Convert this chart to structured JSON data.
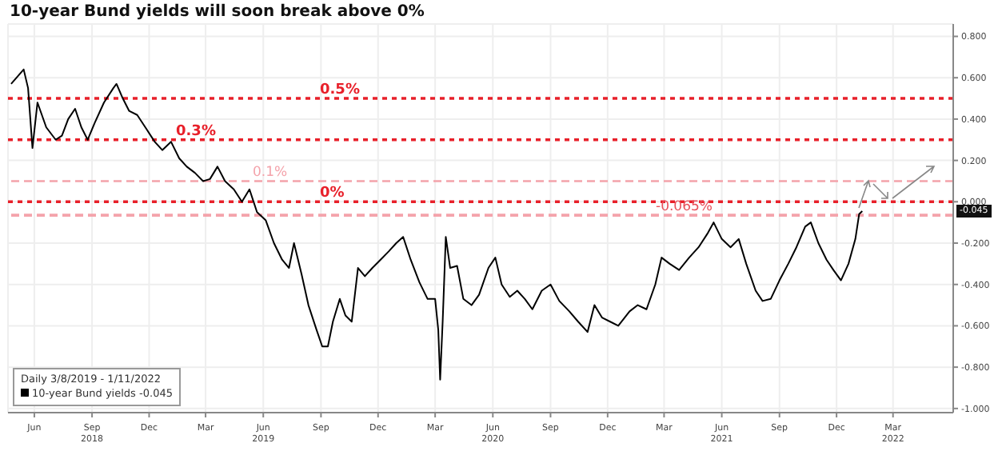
{
  "chart_data": {
    "type": "line",
    "title": "10-year Bund yields will soon break above 0%",
    "annotations": [
      "Daily 3/8/2019 - 1/11/2022",
      "-0.045"
    ],
    "x": [
      "2018-04-25",
      "2018-05-15",
      "2018-05-22",
      "2018-05-29",
      "2018-06-06",
      "2018-06-20",
      "2018-07-05",
      "2018-07-15",
      "2018-07-25",
      "2018-08-05",
      "2018-08-15",
      "2018-08-25",
      "2018-09-05",
      "2018-09-20",
      "2018-10-05",
      "2018-10-10",
      "2018-10-20",
      "2018-10-30",
      "2018-11-12",
      "2018-11-25",
      "2018-12-10",
      "2018-12-22",
      "2019-01-05",
      "2019-01-18",
      "2019-01-30",
      "2019-02-12",
      "2019-02-25",
      "2019-03-08",
      "2019-03-20",
      "2019-04-01",
      "2019-04-15",
      "2019-04-28",
      "2019-05-10",
      "2019-05-22",
      "2019-06-05",
      "2019-06-18",
      "2019-07-01",
      "2019-07-12",
      "2019-07-20",
      "2019-08-01",
      "2019-08-12",
      "2019-08-25",
      "2019-09-03",
      "2019-09-12",
      "2019-09-20",
      "2019-10-01",
      "2019-10-10",
      "2019-10-20",
      "2019-10-30",
      "2019-11-10",
      "2019-11-22",
      "2019-12-05",
      "2019-12-18",
      "2019-12-30",
      "2020-01-10",
      "2020-01-22",
      "2020-02-05",
      "2020-02-18",
      "2020-03-01",
      "2020-03-06",
      "2020-03-09",
      "2020-03-13",
      "2020-03-18",
      "2020-03-25",
      "2020-04-05",
      "2020-04-15",
      "2020-04-28",
      "2020-05-10",
      "2020-05-25",
      "2020-06-05",
      "2020-06-15",
      "2020-06-28",
      "2020-07-10",
      "2020-07-22",
      "2020-08-03",
      "2020-08-18",
      "2020-09-01",
      "2020-09-15",
      "2020-10-01",
      "2020-10-15",
      "2020-10-30",
      "2020-11-10",
      "2020-11-22",
      "2020-12-05",
      "2020-12-18",
      "2021-01-05",
      "2021-01-18",
      "2021-02-01",
      "2021-02-15",
      "2021-02-25",
      "2021-03-10",
      "2021-03-25",
      "2021-04-10",
      "2021-04-25",
      "2021-05-10",
      "2021-05-19",
      "2021-06-01",
      "2021-06-15",
      "2021-06-28",
      "2021-07-10",
      "2021-07-25",
      "2021-08-05",
      "2021-08-18",
      "2021-09-01",
      "2021-09-15",
      "2021-09-28",
      "2021-10-12",
      "2021-10-21",
      "2021-11-02",
      "2021-11-15",
      "2021-11-26",
      "2021-12-08",
      "2021-12-20",
      "2021-12-31",
      "2022-01-06",
      "2022-01-11"
    ],
    "series": [
      {
        "name": "10-year Bund yields",
        "color": "#000000",
        "values": [
          0.57,
          0.64,
          0.55,
          0.26,
          0.48,
          0.36,
          0.3,
          0.32,
          0.4,
          0.45,
          0.36,
          0.3,
          0.38,
          0.48,
          0.55,
          0.57,
          0.5,
          0.44,
          0.42,
          0.36,
          0.29,
          0.25,
          0.29,
          0.21,
          0.17,
          0.14,
          0.1,
          0.11,
          0.17,
          0.1,
          0.06,
          0.0,
          0.06,
          -0.05,
          -0.09,
          -0.2,
          -0.28,
          -0.32,
          -0.2,
          -0.35,
          -0.5,
          -0.62,
          -0.7,
          -0.7,
          -0.58,
          -0.47,
          -0.55,
          -0.58,
          -0.32,
          -0.36,
          -0.32,
          -0.28,
          -0.24,
          -0.2,
          -0.17,
          -0.28,
          -0.39,
          -0.47,
          -0.47,
          -0.62,
          -0.86,
          -0.58,
          -0.17,
          -0.32,
          -0.31,
          -0.47,
          -0.5,
          -0.45,
          -0.32,
          -0.27,
          -0.4,
          -0.46,
          -0.43,
          -0.47,
          -0.52,
          -0.43,
          -0.4,
          -0.48,
          -0.53,
          -0.58,
          -0.63,
          -0.5,
          -0.56,
          -0.58,
          -0.6,
          -0.53,
          -0.5,
          -0.52,
          -0.4,
          -0.27,
          -0.3,
          -0.33,
          -0.27,
          -0.22,
          -0.15,
          -0.1,
          -0.18,
          -0.22,
          -0.18,
          -0.3,
          -0.43,
          -0.48,
          -0.47,
          -0.38,
          -0.3,
          -0.22,
          -0.12,
          -0.1,
          -0.2,
          -0.28,
          -0.33,
          -0.38,
          -0.3,
          -0.18,
          -0.06,
          -0.045
        ]
      }
    ],
    "xlim": [
      "2018-04-20",
      "2022-06-05"
    ],
    "xticks": [
      {
        "value": "2018-06-01",
        "label": "Jun"
      },
      {
        "value": "2018-09-01",
        "label": "Sep 2018"
      },
      {
        "value": "2018-12-01",
        "label": "Dec"
      },
      {
        "value": "2019-03-01",
        "label": "Mar"
      },
      {
        "value": "2019-06-01",
        "label": "Jun 2019"
      },
      {
        "value": "2019-09-01",
        "label": "Sep"
      },
      {
        "value": "2019-12-01",
        "label": "Dec"
      },
      {
        "value": "2020-03-01",
        "label": "Mar"
      },
      {
        "value": "2020-06-01",
        "label": "Jun 2020"
      },
      {
        "value": "2020-09-01",
        "label": "Sep"
      },
      {
        "value": "2020-12-01",
        "label": "Dec"
      },
      {
        "value": "2021-03-01",
        "label": "Mar"
      },
      {
        "value": "2021-06-01",
        "label": "Jun 2021"
      },
      {
        "value": "2021-09-01",
        "label": "Sep"
      },
      {
        "value": "2021-12-01",
        "label": "Dec"
      },
      {
        "value": "2022-03-01",
        "label": "Mar 2022"
      }
    ],
    "ylim": [
      -1.02,
      0.86
    ],
    "yticks": [
      {
        "value": 0.8,
        "label": "0.800"
      },
      {
        "value": 0.6,
        "label": "0.600"
      },
      {
        "value": 0.4,
        "label": "0.400"
      },
      {
        "value": 0.2,
        "label": "0.200"
      },
      {
        "value": 0,
        "label": "0.000"
      },
      {
        "value": -0.2,
        "label": "-0.200"
      },
      {
        "value": -0.4,
        "label": "-0.400"
      },
      {
        "value": -0.6,
        "label": "-0.600"
      },
      {
        "value": -0.8,
        "label": "-0.800"
      },
      {
        "value": -1,
        "label": "-1.000"
      }
    ],
    "ref_lines": [
      {
        "axis": "y",
        "value": 0.5,
        "label": "0.5%",
        "color": "#e8202a",
        "line_style": "dotted"
      },
      {
        "axis": "y",
        "value": 0.3,
        "label": "0.3%",
        "color": "#e8202a",
        "line_style": "dotted"
      },
      {
        "axis": "y",
        "value": 0.1,
        "label": "0.1%",
        "color": "#f4a3ab",
        "line_style": "dashed"
      },
      {
        "axis": "y",
        "value": 0,
        "label": "0%",
        "color": "#e8202a",
        "line_style": "dotted"
      },
      {
        "axis": "y",
        "value": -0.065,
        "label": "-0.065%",
        "color": "#f4a3ab",
        "line_style": "dashed"
      }
    ],
    "grid": true,
    "legend": "bottom left"
  }
}
